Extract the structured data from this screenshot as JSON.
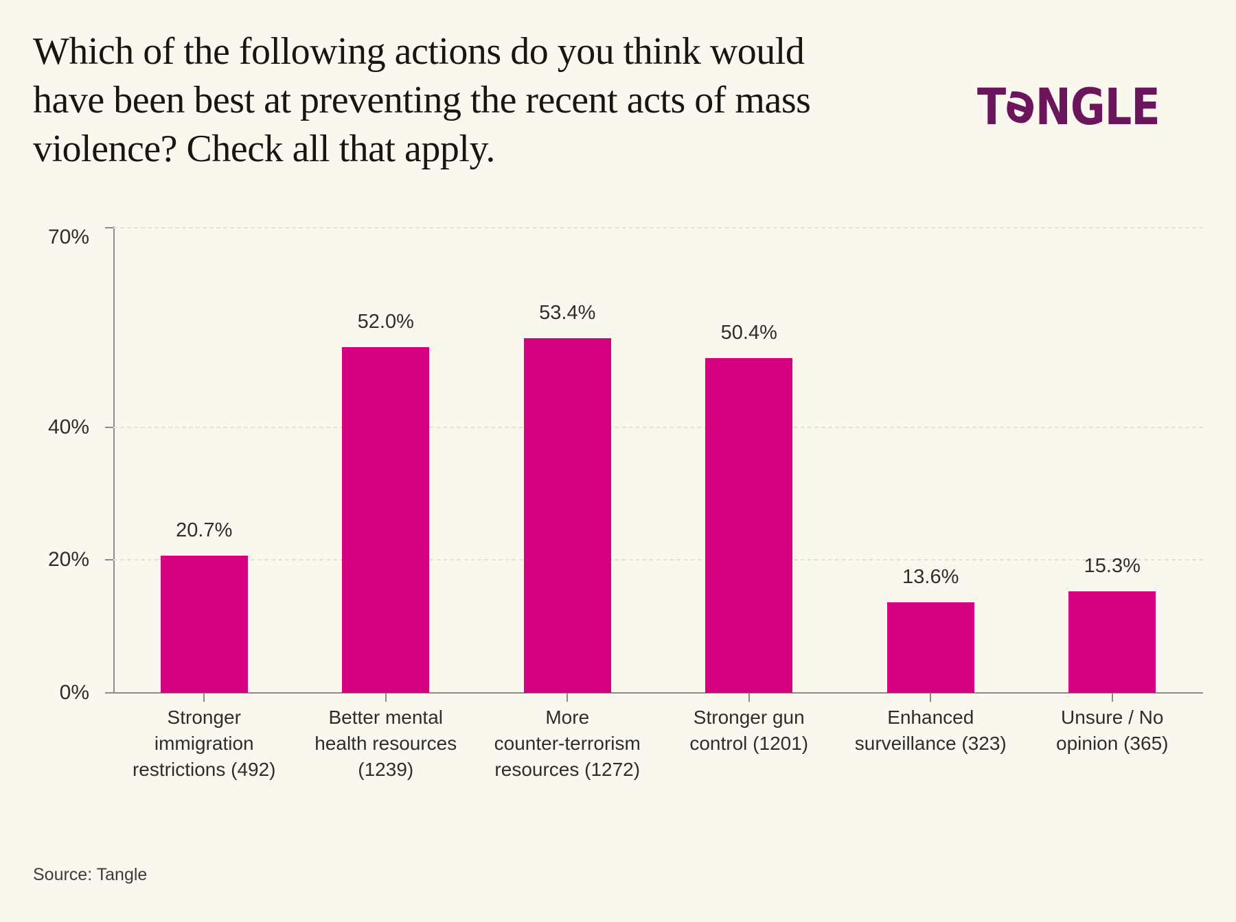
{
  "header": {
    "title_lines": [
      "Which of the following actions do you think would",
      "have been best at preventing the recent acts of mass",
      "violence? Check all that apply."
    ],
    "logo": {
      "prefix": "T",
      "schwa": "ə",
      "suffix": "NGLE"
    }
  },
  "footer": {
    "source": "Source: Tangle"
  },
  "colors": {
    "background": "#faf8ee",
    "bar": "#d6017f",
    "logo": "#6b155c",
    "axis": "#8b8a84",
    "gridline": "#e5e2d5",
    "text": "#2e2d2a"
  },
  "chart_data": {
    "type": "bar",
    "title": "Which of the following actions do you think would have been best at preventing the recent acts of mass violence? Check all that apply.",
    "categories": [
      "Stronger immigration restrictions (492)",
      "Better mental health resources (1239)",
      "More counter-terrorism resources (1272)",
      "Stronger gun control (1201)",
      "Enhanced surveillance (323)",
      "Unsure / No opinion (365)"
    ],
    "category_lines": [
      [
        "Stronger",
        "immigration",
        "restrictions (492)"
      ],
      [
        "Better mental",
        "health resources",
        "(1239)"
      ],
      [
        "More",
        "counter-terrorism",
        "resources (1272)"
      ],
      [
        "Stronger gun",
        "control (1201)"
      ],
      [
        "Enhanced",
        "surveillance (323)"
      ],
      [
        "Unsure / No",
        "opinion (365)"
      ]
    ],
    "counts": [
      492,
      1239,
      1272,
      1201,
      323,
      365
    ],
    "values": [
      20.7,
      52.0,
      53.4,
      50.4,
      13.6,
      15.3
    ],
    "value_labels": [
      "20.7%",
      "52.0%",
      "53.4%",
      "50.4%",
      "13.6%",
      "15.3%"
    ],
    "xlabel": "",
    "ylabel": "",
    "ylim": [
      0,
      70
    ],
    "yticks": [
      {
        "value": 70,
        "label": "70%"
      },
      {
        "value": 40,
        "label": "40%"
      },
      {
        "value": 20,
        "label": "20%"
      },
      {
        "value": 0,
        "label": "0%"
      }
    ],
    "grid": "horizontal-dashed",
    "legend_position": "none"
  }
}
